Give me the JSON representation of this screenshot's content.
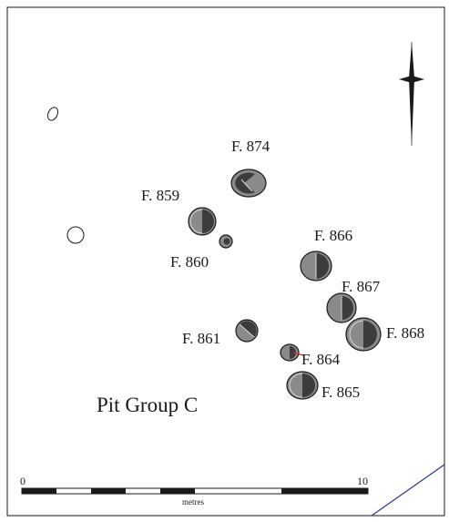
{
  "plan": {
    "title": "Pit Group C",
    "features": [
      {
        "label": "F. 874"
      },
      {
        "label": "F. 859"
      },
      {
        "label": "F. 860"
      },
      {
        "label": "F. 866"
      },
      {
        "label": "F. 867"
      },
      {
        "label": "F. 868"
      },
      {
        "label": "F. 861"
      },
      {
        "label": "F. 864"
      },
      {
        "label": "F. 865"
      }
    ],
    "scale_bar": {
      "start": "0",
      "end": "10",
      "unit": "metres"
    },
    "north_arrow": {
      "icon": "north-arrow-icon"
    },
    "colors": {
      "frame": "#1a1a1a",
      "pit_fill": "#8a8a8a",
      "pit_shadow": "#3c3c3c",
      "pit_line": "#d8d8d8",
      "grid_line": "#27378f",
      "section_line": "#c0392b"
    }
  }
}
